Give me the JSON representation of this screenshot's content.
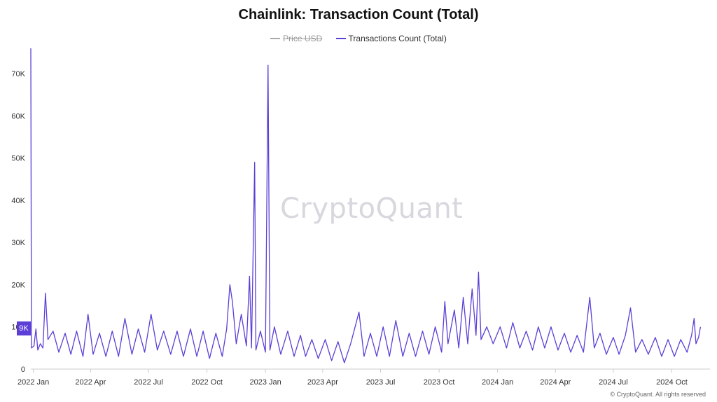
{
  "chart_data": {
    "type": "line",
    "title": "Chainlink: Transaction Count (Total)",
    "legend": [
      {
        "name": "Price USD",
        "color": "#aaaaaa",
        "hidden": true
      },
      {
        "name": "Transactions Count (Total)",
        "color": "#5b3fd6",
        "hidden": false
      }
    ],
    "y_ticks": [
      "0",
      "10K",
      "20K",
      "30K",
      "40K",
      "50K",
      "60K",
      "70K"
    ],
    "ylim": [
      0,
      75000
    ],
    "x_ticks": [
      "2022 Jan",
      "2022 Apr",
      "2022 Jul",
      "2022 Oct",
      "2023 Jan",
      "2023 Apr",
      "2023 Jul",
      "2023 Oct",
      "2024 Jan",
      "2024 Apr",
      "2024 Jul",
      "2024 Oct"
    ],
    "xlim": [
      "2021-12-28",
      "2024-11-30"
    ],
    "current_value_badge": "9K",
    "series": [
      {
        "name": "Transactions Count (Total)",
        "color": "#5b3fd6",
        "points": [
          [
            "2021-12-28",
            76000
          ],
          [
            "2021-12-29",
            5000
          ],
          [
            "2022-01-02",
            5500
          ],
          [
            "2022-01-05",
            9500
          ],
          [
            "2022-01-08",
            4500
          ],
          [
            "2022-01-12",
            6000
          ],
          [
            "2022-01-16",
            5000
          ],
          [
            "2022-01-20",
            18000
          ],
          [
            "2022-01-24",
            7000
          ],
          [
            "2022-02-01",
            9000
          ],
          [
            "2022-02-10",
            4000
          ],
          [
            "2022-02-20",
            8500
          ],
          [
            "2022-03-01",
            3500
          ],
          [
            "2022-03-10",
            9000
          ],
          [
            "2022-03-20",
            3000
          ],
          [
            "2022-03-28",
            13000
          ],
          [
            "2022-04-05",
            3500
          ],
          [
            "2022-04-15",
            8500
          ],
          [
            "2022-04-25",
            3000
          ],
          [
            "2022-05-05",
            9000
          ],
          [
            "2022-05-15",
            3000
          ],
          [
            "2022-05-25",
            12000
          ],
          [
            "2022-06-05",
            3500
          ],
          [
            "2022-06-15",
            9500
          ],
          [
            "2022-06-25",
            4000
          ],
          [
            "2022-07-05",
            13000
          ],
          [
            "2022-07-15",
            4500
          ],
          [
            "2022-07-25",
            9000
          ],
          [
            "2022-08-05",
            3500
          ],
          [
            "2022-08-15",
            9000
          ],
          [
            "2022-08-25",
            3000
          ],
          [
            "2022-09-05",
            9500
          ],
          [
            "2022-09-15",
            3000
          ],
          [
            "2022-09-25",
            9000
          ],
          [
            "2022-10-05",
            2500
          ],
          [
            "2022-10-15",
            8500
          ],
          [
            "2022-10-25",
            3000
          ],
          [
            "2022-11-01",
            9500
          ],
          [
            "2022-11-06",
            20000
          ],
          [
            "2022-11-10",
            16000
          ],
          [
            "2022-11-16",
            6000
          ],
          [
            "2022-11-24",
            13000
          ],
          [
            "2022-12-02",
            5500
          ],
          [
            "2022-12-07",
            22000
          ],
          [
            "2022-12-10",
            5000
          ],
          [
            "2022-12-15",
            49000
          ],
          [
            "2022-12-17",
            4500
          ],
          [
            "2022-12-24",
            9000
          ],
          [
            "2023-01-01",
            4000
          ],
          [
            "2023-01-05",
            72000
          ],
          [
            "2023-01-08",
            4500
          ],
          [
            "2023-01-15",
            10000
          ],
          [
            "2023-01-25",
            3500
          ],
          [
            "2023-02-05",
            9000
          ],
          [
            "2023-02-15",
            3000
          ],
          [
            "2023-02-25",
            8000
          ],
          [
            "2023-03-05",
            3000
          ],
          [
            "2023-03-15",
            7000
          ],
          [
            "2023-03-25",
            2500
          ],
          [
            "2023-04-05",
            7000
          ],
          [
            "2023-04-15",
            2000
          ],
          [
            "2023-04-25",
            6500
          ],
          [
            "2023-05-05",
            1500
          ],
          [
            "2023-05-15",
            6000
          ],
          [
            "2023-05-28",
            13500
          ],
          [
            "2023-06-05",
            3000
          ],
          [
            "2023-06-15",
            8500
          ],
          [
            "2023-06-25",
            3000
          ],
          [
            "2023-07-05",
            10000
          ],
          [
            "2023-07-15",
            3000
          ],
          [
            "2023-07-25",
            11500
          ],
          [
            "2023-08-05",
            3000
          ],
          [
            "2023-08-15",
            8500
          ],
          [
            "2023-08-25",
            3000
          ],
          [
            "2023-09-05",
            9000
          ],
          [
            "2023-09-15",
            3500
          ],
          [
            "2023-09-25",
            10000
          ],
          [
            "2023-10-05",
            4000
          ],
          [
            "2023-10-10",
            16000
          ],
          [
            "2023-10-15",
            6000
          ],
          [
            "2023-10-25",
            14000
          ],
          [
            "2023-11-01",
            5000
          ],
          [
            "2023-11-08",
            17000
          ],
          [
            "2023-11-15",
            6000
          ],
          [
            "2023-11-22",
            19000
          ],
          [
            "2023-11-28",
            8000
          ],
          [
            "2023-12-02",
            23000
          ],
          [
            "2023-12-06",
            7000
          ],
          [
            "2023-12-15",
            10000
          ],
          [
            "2023-12-25",
            6000
          ],
          [
            "2024-01-05",
            10000
          ],
          [
            "2024-01-15",
            5000
          ],
          [
            "2024-01-25",
            11000
          ],
          [
            "2024-02-05",
            5000
          ],
          [
            "2024-02-15",
            9000
          ],
          [
            "2024-02-25",
            4500
          ],
          [
            "2024-03-05",
            10000
          ],
          [
            "2024-03-15",
            5000
          ],
          [
            "2024-03-25",
            10000
          ],
          [
            "2024-04-05",
            4500
          ],
          [
            "2024-04-15",
            8500
          ],
          [
            "2024-04-25",
            4000
          ],
          [
            "2024-05-05",
            8000
          ],
          [
            "2024-05-15",
            4000
          ],
          [
            "2024-05-25",
            17000
          ],
          [
            "2024-06-01",
            5000
          ],
          [
            "2024-06-10",
            8500
          ],
          [
            "2024-06-20",
            3500
          ],
          [
            "2024-07-01",
            7500
          ],
          [
            "2024-07-10",
            3500
          ],
          [
            "2024-07-20",
            8000
          ],
          [
            "2024-07-28",
            14500
          ],
          [
            "2024-08-05",
            4000
          ],
          [
            "2024-08-15",
            7000
          ],
          [
            "2024-08-25",
            3500
          ],
          [
            "2024-09-05",
            7500
          ],
          [
            "2024-09-15",
            3000
          ],
          [
            "2024-09-25",
            7000
          ],
          [
            "2024-10-05",
            3000
          ],
          [
            "2024-10-15",
            7000
          ],
          [
            "2024-10-25",
            4000
          ],
          [
            "2024-11-01",
            8000
          ],
          [
            "2024-11-05",
            12000
          ],
          [
            "2024-11-08",
            6000
          ],
          [
            "2024-11-12",
            7500
          ],
          [
            "2024-11-15",
            10000
          ]
        ]
      }
    ]
  },
  "watermark": "CryptoQuant",
  "copyright": "© CryptoQuant. All rights reserved"
}
